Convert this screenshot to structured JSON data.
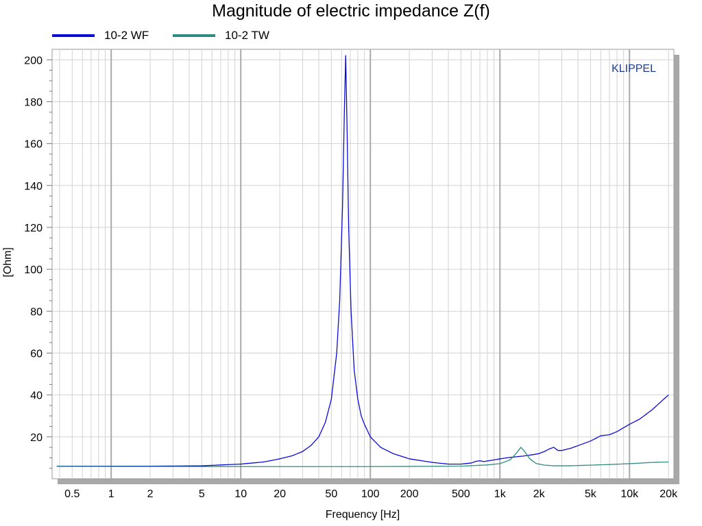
{
  "title": "Magnitude of electric impedance Z(f)",
  "watermark": "KLIPPEL",
  "chart_data": {
    "type": "line",
    "title": "Magnitude of electric impedance Z(f)",
    "xlabel": "Frequency [Hz]",
    "ylabel": "[Ohm]",
    "x_scale": "log",
    "xlim": [
      0.35,
      22000
    ],
    "ylim": [
      0,
      205
    ],
    "grid": true,
    "legend_position": "top-left",
    "x_ticks": [
      {
        "value": 0.5,
        "label": "0.5"
      },
      {
        "value": 1,
        "label": "1"
      },
      {
        "value": 2,
        "label": "2"
      },
      {
        "value": 5,
        "label": "5"
      },
      {
        "value": 10,
        "label": "10"
      },
      {
        "value": 20,
        "label": "20"
      },
      {
        "value": 50,
        "label": "50"
      },
      {
        "value": 100,
        "label": "100"
      },
      {
        "value": 200,
        "label": "200"
      },
      {
        "value": 500,
        "label": "500"
      },
      {
        "value": 1000,
        "label": "1k"
      },
      {
        "value": 2000,
        "label": "2k"
      },
      {
        "value": 5000,
        "label": "5k"
      },
      {
        "value": 10000,
        "label": "10k"
      },
      {
        "value": 20000,
        "label": "20k"
      }
    ],
    "y_ticks": [
      {
        "value": 20,
        "label": "20"
      },
      {
        "value": 40,
        "label": "40"
      },
      {
        "value": 60,
        "label": "60"
      },
      {
        "value": 80,
        "label": "80"
      },
      {
        "value": 100,
        "label": "100"
      },
      {
        "value": 120,
        "label": "120"
      },
      {
        "value": 140,
        "label": "140"
      },
      {
        "value": 160,
        "label": "160"
      },
      {
        "value": 180,
        "label": "180"
      },
      {
        "value": 200,
        "label": "200"
      }
    ],
    "series": [
      {
        "name": "10-2 WF",
        "color": "#0a0ad8",
        "points": [
          [
            0.38,
            6.0
          ],
          [
            1,
            6.0
          ],
          [
            2,
            6.0
          ],
          [
            5,
            6.2
          ],
          [
            10,
            7.0
          ],
          [
            15,
            8.0
          ],
          [
            20,
            9.5
          ],
          [
            25,
            11.0
          ],
          [
            30,
            13.0
          ],
          [
            35,
            16.0
          ],
          [
            40,
            20.0
          ],
          [
            45,
            27.0
          ],
          [
            50,
            38.0
          ],
          [
            55,
            60.0
          ],
          [
            58,
            85.0
          ],
          [
            61,
            130.0
          ],
          [
            63,
            175.0
          ],
          [
            64.5,
            202.0
          ],
          [
            66,
            170.0
          ],
          [
            68,
            120.0
          ],
          [
            71,
            80.0
          ],
          [
            75,
            52.0
          ],
          [
            80,
            38.0
          ],
          [
            85,
            30.0
          ],
          [
            90,
            26.0
          ],
          [
            100,
            20.0
          ],
          [
            120,
            15.0
          ],
          [
            150,
            12.0
          ],
          [
            200,
            9.5
          ],
          [
            300,
            7.8
          ],
          [
            400,
            7.0
          ],
          [
            500,
            7.0
          ],
          [
            600,
            7.5
          ],
          [
            650,
            8.3
          ],
          [
            700,
            8.6
          ],
          [
            750,
            8.2
          ],
          [
            800,
            8.5
          ],
          [
            900,
            9.0
          ],
          [
            1000,
            9.5
          ],
          [
            1200,
            10.2
          ],
          [
            1500,
            10.8
          ],
          [
            1800,
            11.5
          ],
          [
            2000,
            12.0
          ],
          [
            2200,
            13.0
          ],
          [
            2400,
            14.2
          ],
          [
            2600,
            15.0
          ],
          [
            2800,
            13.5
          ],
          [
            3000,
            13.5
          ],
          [
            3500,
            14.5
          ],
          [
            4000,
            15.8
          ],
          [
            5000,
            18.0
          ],
          [
            6000,
            20.5
          ],
          [
            7000,
            21.0
          ],
          [
            8000,
            22.5
          ],
          [
            10000,
            26.0
          ],
          [
            12000,
            28.5
          ],
          [
            15000,
            33.0
          ],
          [
            18000,
            37.5
          ],
          [
            20000,
            40.0
          ]
        ]
      },
      {
        "name": "10-2 TW",
        "color": "#2e8b80",
        "points": [
          [
            0.38,
            5.9
          ],
          [
            10,
            5.8
          ],
          [
            100,
            5.8
          ],
          [
            500,
            6.0
          ],
          [
            800,
            6.6
          ],
          [
            1000,
            7.2
          ],
          [
            1200,
            9.0
          ],
          [
            1350,
            12.5
          ],
          [
            1450,
            15.0
          ],
          [
            1550,
            13.0
          ],
          [
            1700,
            9.5
          ],
          [
            1900,
            7.3
          ],
          [
            2200,
            6.5
          ],
          [
            2600,
            6.2
          ],
          [
            3500,
            6.2
          ],
          [
            5000,
            6.5
          ],
          [
            7000,
            6.8
          ],
          [
            10000,
            7.2
          ],
          [
            15000,
            7.8
          ],
          [
            20000,
            8.0
          ]
        ]
      }
    ]
  }
}
